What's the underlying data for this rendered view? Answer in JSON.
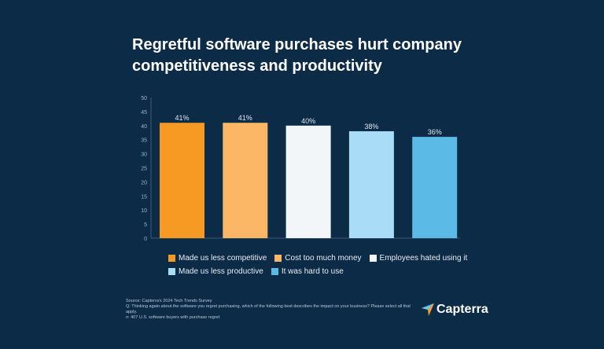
{
  "chart_data": {
    "type": "bar",
    "title": "Regretful software purchases hurt company competitiveness and productivity",
    "categories": [
      "Made us less competitive",
      "Cost too much money",
      "Employees hated using it",
      "Made us less productive",
      "It was hard to use"
    ],
    "values": [
      41,
      41,
      40,
      38,
      36
    ],
    "data_labels": [
      "41%",
      "41%",
      "40%",
      "38%",
      "36%"
    ],
    "colors": [
      "#f79a24",
      "#fbb765",
      "#f3f6f8",
      "#a9dcf6",
      "#5cbbe6"
    ],
    "ylim": [
      0,
      50
    ],
    "yticks": [
      0,
      5,
      10,
      15,
      20,
      25,
      30,
      35,
      40,
      45,
      50
    ],
    "grid": false,
    "legend_placement": "bottom"
  },
  "footnote": {
    "source": "Source: Capterra's 2024 Tech Trends Survey",
    "question": "Q: Thinking again about the software you regret purchasing, which of the following best describes the impact on your business? Please select all that apply.",
    "n": "n: 407 U.S. software buyers with purchase regret"
  },
  "logo": {
    "text": "Capterra"
  }
}
